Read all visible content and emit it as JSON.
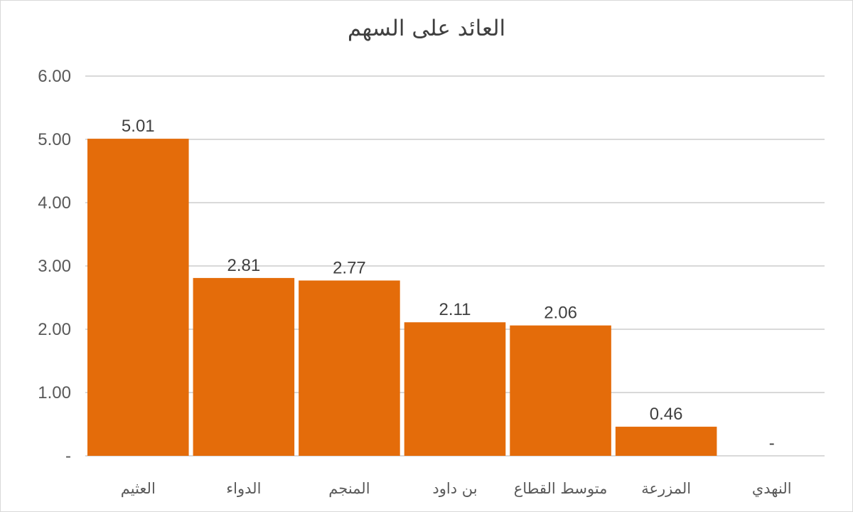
{
  "chart_data": {
    "type": "bar",
    "title": "العائد على السهم",
    "categories": [
      "العثيم",
      "الدواء",
      "المنجم",
      "بن داود",
      "متوسط القطاع",
      "المزرعة",
      "النهدي"
    ],
    "values": [
      5.01,
      2.81,
      2.77,
      2.11,
      2.06,
      0.46,
      0
    ],
    "data_labels": [
      "5.01",
      "2.81",
      "2.77",
      "2.11",
      "2.06",
      "0.46",
      "-"
    ],
    "yticks": [
      "-",
      "1.00",
      "2.00",
      "3.00",
      "4.00",
      "5.00",
      "6.00"
    ],
    "ylim": [
      0,
      6
    ],
    "grid": true,
    "legend": "none",
    "bar_color": "#E46C0A",
    "gridline_color": "#D9D9D9"
  }
}
